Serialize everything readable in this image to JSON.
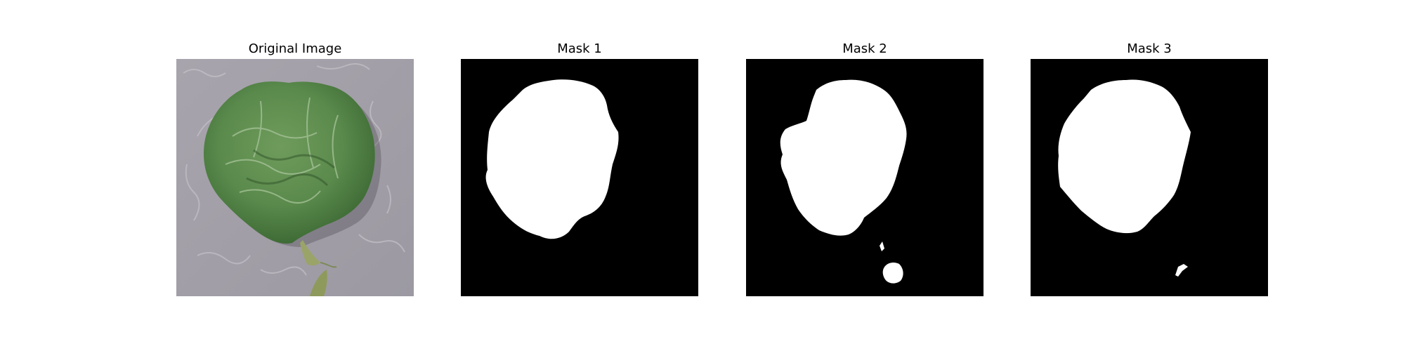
{
  "panels": [
    {
      "title": "Original Image"
    },
    {
      "title": "Mask 1"
    },
    {
      "title": "Mask 2"
    },
    {
      "title": "Mask 3"
    }
  ],
  "colors": {
    "background": "#a19ea6",
    "leaf": "#5d8a4f",
    "leaf_dark": "#3f6a36",
    "mask_fg": "#ffffff",
    "mask_bg": "#000000"
  }
}
